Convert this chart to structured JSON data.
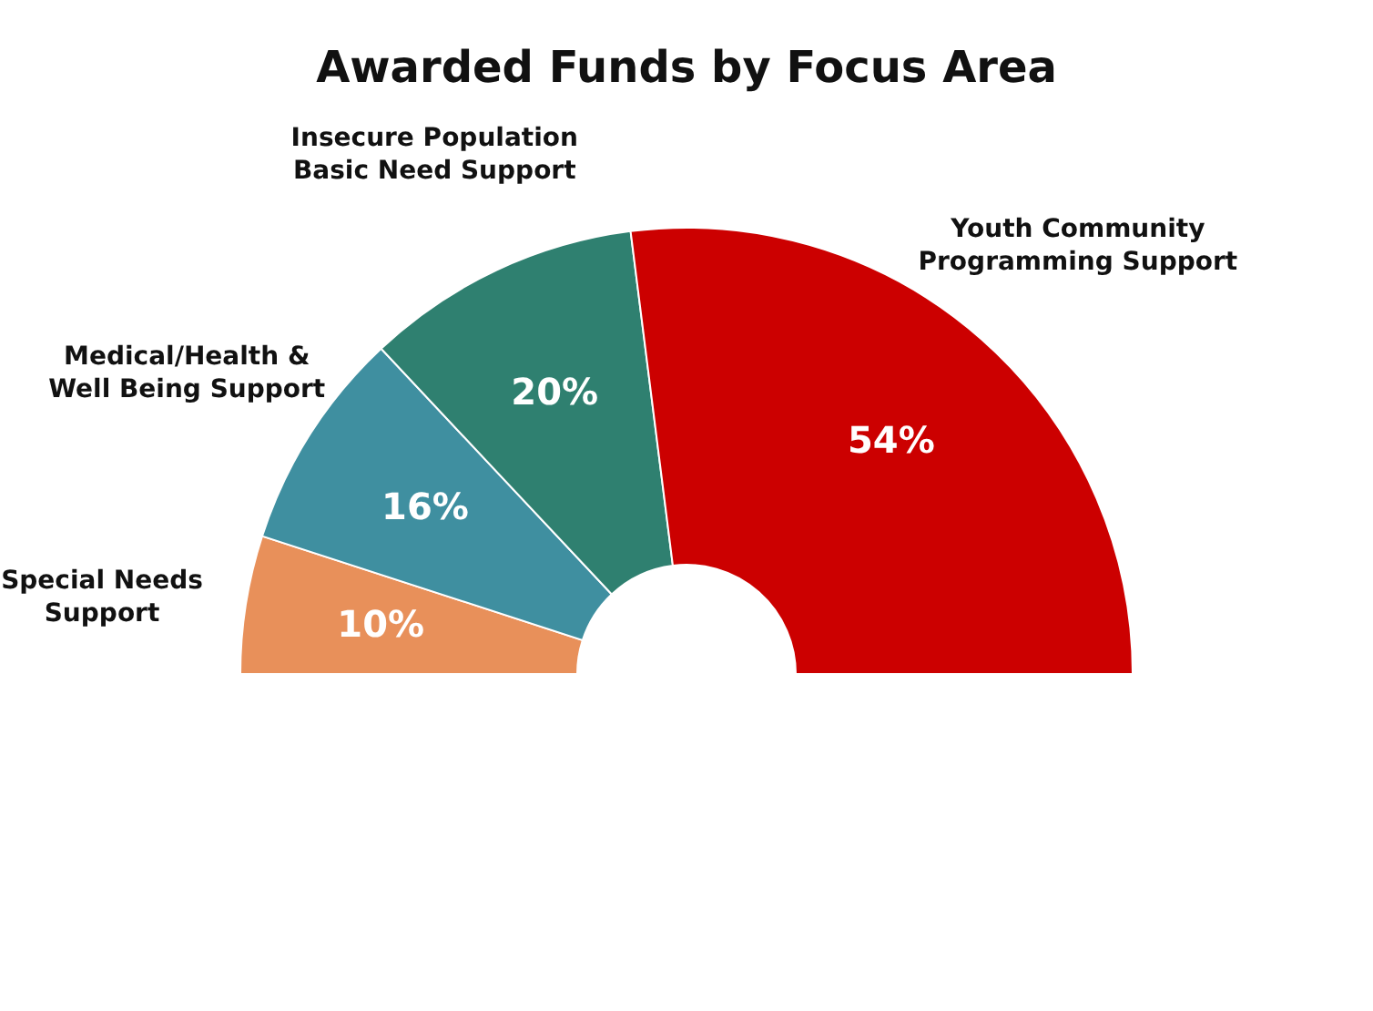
{
  "chart_data": {
    "type": "donut",
    "title": "Awarded Funds by Focus Area",
    "categories": [
      "Special Needs Support",
      "Medical/Health & Well Being Support",
      "Insecure Population Basic Need Support",
      "Youth Community Programming Support"
    ],
    "values": [
      10,
      16,
      20,
      54
    ],
    "colors": [
      "#e8905a",
      "#3f8fa0",
      "#2f8070",
      "#cc0000"
    ],
    "value_labels": [
      "10%",
      "16%",
      "20%",
      "54%"
    ],
    "legend": false
  }
}
